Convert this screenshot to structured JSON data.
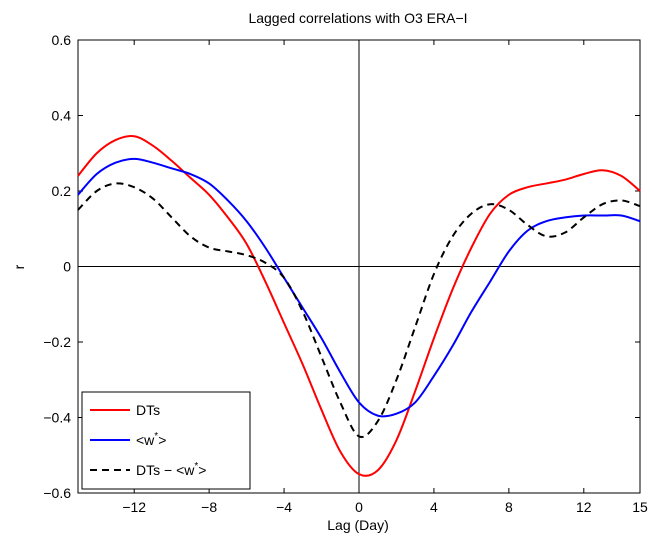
{
  "chart_data": {
    "type": "line",
    "title": "Lagged correlations with O3 ERA−I",
    "xlabel": "Lag (Day)",
    "ylabel": "r",
    "xlim": [
      -15,
      15
    ],
    "ylim": [
      -0.6,
      0.6
    ],
    "xticks": [
      -12,
      -8,
      -4,
      0,
      4,
      8,
      12,
      15
    ],
    "xtick_labels": [
      "−12",
      "−8",
      "−4",
      "0",
      "4",
      "8",
      "12",
      "15"
    ],
    "yticks": [
      -0.6,
      -0.4,
      -0.2,
      0,
      0.2,
      0.4,
      0.6
    ],
    "ytick_labels": [
      "−0.6",
      "−0.4",
      "−0.2",
      "0",
      "0.2",
      "0.4",
      "0.6"
    ],
    "grid": false,
    "zero_lines": true,
    "legend_position": "bottom-left",
    "x": [
      -15,
      -14,
      -13,
      -12,
      -11,
      -10,
      -9,
      -8,
      -7,
      -6,
      -5,
      -4,
      -3,
      -2,
      -1,
      0,
      1,
      2,
      3,
      4,
      5,
      6,
      7,
      8,
      9,
      10,
      11,
      12,
      13,
      14,
      15
    ],
    "series": [
      {
        "name": "DTs",
        "color": "#ff0000",
        "dash": "solid",
        "values": [
          0.24,
          0.3,
          0.335,
          0.345,
          0.32,
          0.28,
          0.235,
          0.19,
          0.13,
          0.06,
          -0.04,
          -0.15,
          -0.26,
          -0.38,
          -0.49,
          -0.55,
          -0.54,
          -0.46,
          -0.33,
          -0.19,
          -0.06,
          0.05,
          0.14,
          0.19,
          0.21,
          0.22,
          0.23,
          0.245,
          0.255,
          0.24,
          0.2
        ]
      },
      {
        "name": "<w*>",
        "color": "#0000ff",
        "dash": "solid",
        "values": [
          0.19,
          0.245,
          0.275,
          0.285,
          0.275,
          0.26,
          0.245,
          0.22,
          0.175,
          0.12,
          0.05,
          -0.03,
          -0.11,
          -0.19,
          -0.28,
          -0.36,
          -0.395,
          -0.39,
          -0.36,
          -0.29,
          -0.21,
          -0.12,
          -0.04,
          0.04,
          0.095,
          0.12,
          0.13,
          0.135,
          0.135,
          0.135,
          0.12
        ]
      },
      {
        "name": "DTs − <w*>",
        "color": "#000000",
        "dash": "dashed",
        "values": [
          0.15,
          0.2,
          0.22,
          0.21,
          0.18,
          0.13,
          0.08,
          0.05,
          0.04,
          0.03,
          0.01,
          -0.03,
          -0.12,
          -0.24,
          -0.36,
          -0.45,
          -0.41,
          -0.3,
          -0.16,
          -0.02,
          0.08,
          0.14,
          0.165,
          0.15,
          0.11,
          0.08,
          0.09,
          0.13,
          0.165,
          0.175,
          0.16
        ]
      }
    ],
    "legend": [
      {
        "name": "DTs",
        "base": "DTs",
        "sup": ""
      },
      {
        "name": "<w*>",
        "base": "<w",
        "sup": "*",
        "tail": ">"
      },
      {
        "name": "DTs − <w*>",
        "base": "DTs − <w",
        "sup": "*",
        "tail": ">"
      }
    ]
  }
}
